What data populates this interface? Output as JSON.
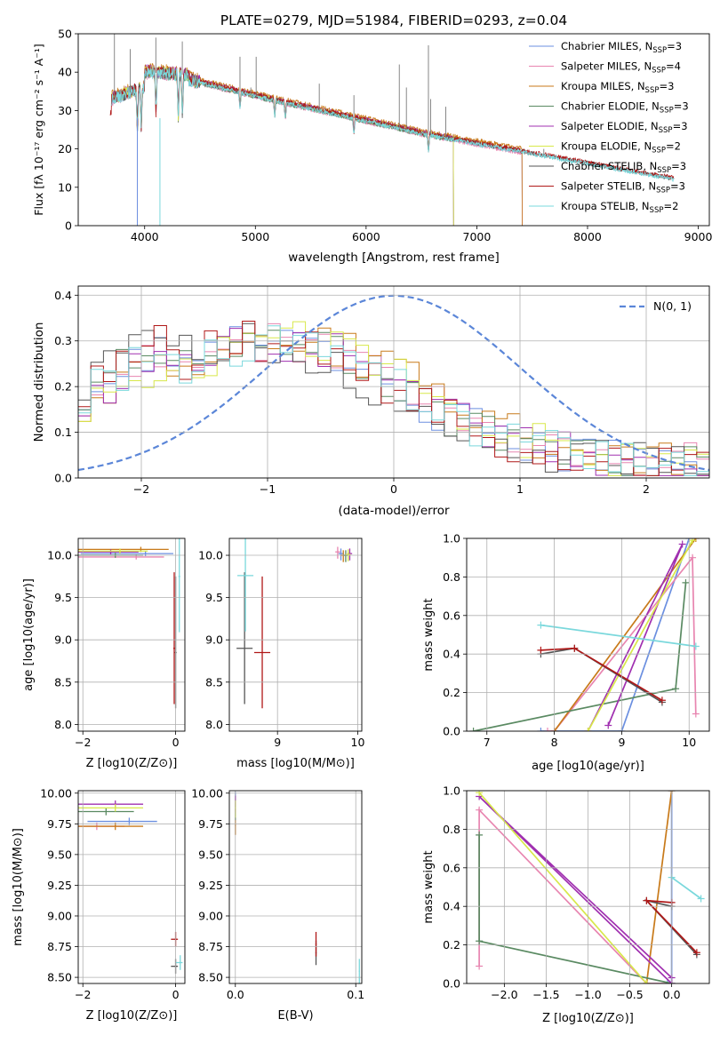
{
  "colors": {
    "Chabrier MILES": "#6b8fe0",
    "Salpeter MILES": "#e885b0",
    "Kroupa MILES": "#c87a1a",
    "Chabrier ELODIE": "#5a8a62",
    "Salpeter ELODIE": "#a030b0",
    "Kroupa ELODIE": "#d8e84a",
    "Chabrier STELIB": "#555555",
    "Salpeter STELIB": "#b01818",
    "Kroupa STELIB": "#7ad8dc",
    "gaussian": "#5b86d8",
    "grid": "#b0b0b0"
  },
  "chart_data": [
    {
      "id": "spectrum",
      "type": "line",
      "title": "PLATE=0279, MJD=51984, FIBERID=0293, z=0.04",
      "xlabel": "wavelength [Angstrom, rest frame]",
      "ylabel": "Flux [fλ 10⁻¹⁷ erg cm⁻² s⁻¹ A⁻¹]",
      "xlim": [
        3400,
        9100
      ],
      "ylim": [
        0,
        50
      ],
      "xticks": [
        "4000",
        "5000",
        "6000",
        "7000",
        "8000",
        "9000"
      ],
      "yticks": [
        "0",
        "10",
        "20",
        "30",
        "40",
        "50"
      ],
      "legend_position": "upper right",
      "series": [
        {
          "name": "Chabrier MILES, N_SSP=3",
          "label_main": "Chabrier MILES, N",
          "label_sub": "SSP",
          "label_tail": "=3",
          "offset": 0.0,
          "start": 3700,
          "end": 7410,
          "drop": 7410
        },
        {
          "name": "Salpeter MILES, N_SSP=4",
          "label_main": "Salpeter MILES, N",
          "label_sub": "SSP",
          "label_tail": "=4",
          "offset": -0.3,
          "start": 3700,
          "end": 7410,
          "drop": 7410
        },
        {
          "name": "Kroupa MILES, N_SSP=3",
          "label_main": "Kroupa MILES, N",
          "label_sub": "SSP",
          "label_tail": "=3",
          "offset": 0.8,
          "start": 3700,
          "end": 7410,
          "drop": 7410
        },
        {
          "name": "Chabrier ELODIE, N_SSP=3",
          "label_main": "Chabrier ELODIE, N",
          "label_sub": "SSP",
          "label_tail": "=3",
          "offset": -0.2,
          "start": 3700,
          "end": 6790,
          "drop": 6790
        },
        {
          "name": "Salpeter ELODIE, N_SSP=3",
          "label_main": "Salpeter ELODIE, N",
          "label_sub": "SSP",
          "label_tail": "=3",
          "offset": 0.4,
          "start": 3700,
          "end": 6790,
          "drop": 6790
        },
        {
          "name": "Kroupa ELODIE, N_SSP=2",
          "label_main": "Kroupa ELODIE, N",
          "label_sub": "SSP",
          "label_tail": "=2",
          "offset": 0.2,
          "start": 3700,
          "end": 6790,
          "drop": 6790
        },
        {
          "name": "Chabrier STELIB, N_SSP=3",
          "label_main": "Chabrier STELIB, N",
          "label_sub": "SSP",
          "label_tail": "=3",
          "offset": 0.1,
          "start": 3700,
          "end": 8780,
          "drop": 0
        },
        {
          "name": "Salpeter STELIB, N_SSP=3",
          "label_main": "Salpeter STELIB, N",
          "label_sub": "SSP",
          "label_tail": "=3",
          "offset": 0.3,
          "start": 3690,
          "end": 8780,
          "drop": 0
        },
        {
          "name": "Kroupa STELIB, N_SSP=2",
          "label_main": "Kroupa STELIB, N",
          "label_sub": "SSP",
          "label_tail": "=2",
          "offset": -0.1,
          "start": 3700,
          "end": 8780,
          "drop": 0
        }
      ]
    },
    {
      "id": "residuals",
      "type": "line",
      "xlabel": "(data-model)/error",
      "ylabel": "Normed distribution",
      "xlim": [
        -2.5,
        2.5
      ],
      "ylim": [
        0,
        0.42
      ],
      "xticks": [
        "−2",
        "−1",
        "0",
        "1",
        "2"
      ],
      "yticks": [
        "0.0",
        "0.1",
        "0.2",
        "0.3",
        "0.4"
      ],
      "legend": "N(0, 1)",
      "legend_position": "upper right"
    },
    {
      "id": "age_vs_Z",
      "type": "scatter",
      "xlabel": "Z [log10(Z/Z⊙)]",
      "ylabel": "age [log10(age/yr)]",
      "xlim": [
        -2.1,
        0.2
      ],
      "ylim": [
        7.92,
        10.2
      ],
      "xticks": [
        "−2",
        "0"
      ],
      "yticks": [
        "8.0",
        "8.5",
        "9.0",
        "9.5",
        "10.0"
      ]
    },
    {
      "id": "age_vs_mass",
      "type": "scatter",
      "xlabel": "mass [log10(M/M⊙)]",
      "ylabel": "",
      "xlim": [
        8.4,
        10.05
      ],
      "ylim": [
        7.92,
        10.2
      ],
      "xticks": [
        "9",
        "10"
      ],
      "yticks": [
        "8.0",
        "8.5",
        "9.0",
        "9.5",
        "10.0"
      ]
    },
    {
      "id": "weight_vs_age",
      "type": "line",
      "xlabel": "age [log10(age/yr)]",
      "ylabel": "mass weight",
      "xlim": [
        6.7,
        10.3
      ],
      "ylim": [
        0,
        1.0
      ],
      "xticks": [
        "7",
        "8",
        "9",
        "10"
      ],
      "yticks": [
        "0.0",
        "0.2",
        "0.4",
        "0.6",
        "0.8",
        "1.0"
      ]
    },
    {
      "id": "mass_vs_Z",
      "type": "scatter",
      "xlabel": "Z [log10(Z/Z⊙)]",
      "ylabel": "mass [log10(M/M⊙)]",
      "xlim": [
        -2.1,
        0.2
      ],
      "ylim": [
        8.45,
        10.02
      ],
      "xticks": [
        "−2",
        "0"
      ],
      "yticks": [
        "8.50",
        "8.75",
        "9.00",
        "9.25",
        "9.50",
        "9.75",
        "10.00"
      ]
    },
    {
      "id": "mass_vs_ebv",
      "type": "scatter",
      "xlabel": "E(B-V)",
      "ylabel": "",
      "xlim": [
        -0.005,
        0.105
      ],
      "ylim": [
        8.45,
        10.02
      ],
      "xticks": [
        "0.0",
        "0.1"
      ],
      "yticks": [
        "8.50",
        "8.75",
        "9.00",
        "9.25",
        "9.50",
        "9.75",
        "10.00"
      ]
    },
    {
      "id": "weight_vs_Z",
      "type": "line",
      "xlabel": "Z [log10(Z/Z⊙)]",
      "ylabel": "mass weight",
      "xlim": [
        -2.45,
        0.45
      ],
      "ylim": [
        0,
        1.0
      ],
      "xticks": [
        "−2.0",
        "−1.5",
        "−1.0",
        "−0.5",
        "0.0"
      ],
      "yticks": [
        "0.0",
        "0.2",
        "0.4",
        "0.6",
        "0.8",
        "1.0"
      ]
    }
  ],
  "model_fits": {
    "order": [
      "Chabrier MILES",
      "Salpeter MILES",
      "Kroupa MILES",
      "Chabrier ELODIE",
      "Salpeter ELODIE",
      "Kroupa ELODIE",
      "Chabrier STELIB",
      "Salpeter STELIB",
      "Kroupa STELIB"
    ],
    "ssp_weights": {
      "Chabrier MILES": [
        [
          7.8,
          -0.05,
          0.0
        ],
        [
          9.0,
          0.0,
          0.0
        ],
        [
          10.0,
          0.0,
          1.0
        ]
      ],
      "Salpeter MILES": [
        [
          10.1,
          -2.3,
          0.09
        ],
        [
          10.05,
          -2.3,
          0.9
        ],
        [
          8.0,
          -0.3,
          0.0
        ],
        [
          7.9,
          0.0,
          0.0
        ]
      ],
      "Kroupa MILES": [
        [
          8.0,
          -0.3,
          0.0
        ],
        [
          10.1,
          0.0,
          1.0
        ]
      ],
      "Chabrier ELODIE": [
        [
          6.8,
          0.0,
          0.0
        ],
        [
          9.8,
          -2.3,
          0.22
        ],
        [
          9.95,
          -2.3,
          0.77
        ]
      ],
      "Salpeter ELODIE": [
        [
          8.8,
          0.0,
          0.03
        ],
        [
          9.9,
          -2.3,
          0.97
        ],
        [
          8.5,
          0.0,
          0.0
        ]
      ],
      "Kroupa ELODIE": [
        [
          8.5,
          -0.3,
          0.0
        ],
        [
          10.05,
          -2.3,
          0.99
        ]
      ],
      "Chabrier STELIB": [
        [
          7.8,
          0.0,
          0.4
        ],
        [
          8.3,
          -0.3,
          0.43
        ],
        [
          9.6,
          0.3,
          0.15
        ]
      ],
      "Salpeter STELIB": [
        [
          7.8,
          0.0,
          0.42
        ],
        [
          8.3,
          -0.3,
          0.43
        ],
        [
          9.6,
          0.3,
          0.16
        ]
      ],
      "Kroupa STELIB": [
        [
          7.8,
          0.0,
          0.55
        ],
        [
          10.1,
          0.35,
          0.44
        ]
      ]
    },
    "age_Z_points": {
      "Chabrier MILES": [
        -0.65,
        10.02
      ],
      "Salpeter MILES": [
        -0.85,
        9.98
      ],
      "Kroupa MILES": [
        -0.75,
        10.07
      ],
      "Chabrier ELODIE": [
        -1.3,
        10.0
      ],
      "Salpeter ELODIE": [
        -1.4,
        10.04
      ],
      "Kroupa ELODIE": [
        -1.2,
        10.05
      ],
      "Chabrier STELIB": [
        0.0,
        8.85
      ],
      "Salpeter STELIB": [
        -0.03,
        8.9
      ],
      "Kroupa STELIB": [
        0.08,
        9.75
      ]
    },
    "mass_Z_points": {
      "Chabrier MILES": [
        -1.0,
        9.77
      ],
      "Salpeter MILES": [
        -1.7,
        9.73
      ],
      "Kroupa MILES": [
        -1.3,
        9.73
      ],
      "Chabrier ELODIE": [
        -1.5,
        9.85
      ],
      "Salpeter ELODIE": [
        -1.3,
        9.91
      ],
      "Kroupa ELODIE": [
        -1.3,
        9.88
      ],
      "Chabrier STELIB": [
        0.0,
        8.59
      ],
      "Salpeter STELIB": [
        0.0,
        8.81
      ],
      "Kroupa STELIB": [
        0.1,
        8.62
      ]
    },
    "age_mass_points": {
      "Chabrier MILES": [
        9.79,
        10.02
      ],
      "Salpeter MILES": [
        9.75,
        10.04
      ],
      "Kroupa MILES": [
        9.82,
        10.0
      ],
      "Chabrier ELODIE": [
        9.85,
        10.0
      ],
      "Salpeter ELODIE": [
        9.9,
        10.02
      ],
      "Kroupa ELODIE": [
        9.88,
        10.01
      ],
      "Chabrier STELIB": [
        8.59,
        8.9
      ],
      "Salpeter STELIB": [
        8.81,
        8.85
      ],
      "Kroupa STELIB": [
        8.6,
        9.76
      ]
    },
    "mass_ebv_points": {
      "Chabrier MILES": [
        0.0,
        9.95
      ],
      "Salpeter MILES": [
        0.0,
        9.9
      ],
      "Kroupa MILES": [
        0.0,
        9.74
      ],
      "Chabrier ELODIE": [
        0.0,
        9.86
      ],
      "Salpeter ELODIE": [
        0.0,
        9.92
      ],
      "Kroupa ELODIE": [
        0.0,
        9.88
      ],
      "Chabrier STELIB": [
        0.067,
        8.7
      ],
      "Salpeter STELIB": [
        0.067,
        8.77
      ],
      "Kroupa STELIB": [
        0.103,
        8.55
      ]
    }
  }
}
